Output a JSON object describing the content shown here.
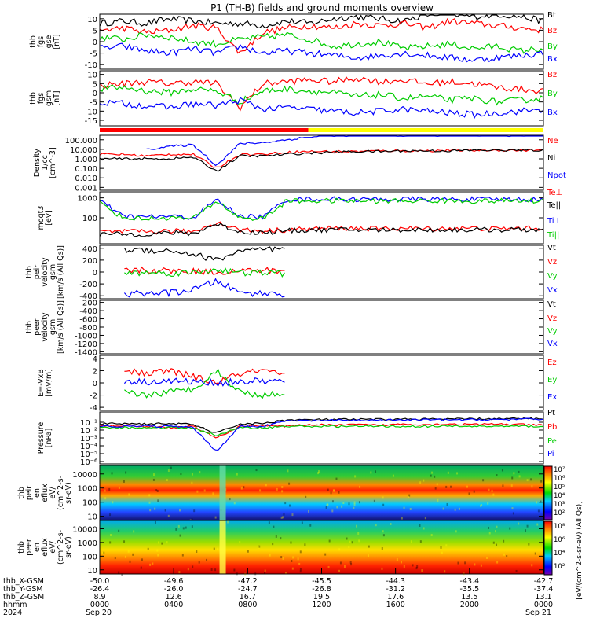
{
  "title": "P1 (TH-B) fields and ground moments overview",
  "colors": {
    "black": "#000000",
    "red": "#ff0000",
    "green": "#00cc00",
    "blue": "#0000ff",
    "yellow": "#ffff00"
  },
  "chart_data": [
    {
      "type": "line",
      "id": "fgs_gse",
      "ylabel": [
        "thb",
        "fgs",
        "gse",
        "[nT]"
      ],
      "ylim": [
        -12,
        12
      ],
      "ticks": [
        -10,
        -5,
        0,
        5,
        10
      ],
      "series": [
        {
          "name": "Bt",
          "color": "black",
          "values": [
            8,
            9,
            8,
            10,
            9,
            8,
            8,
            7,
            9,
            8,
            10,
            11,
            10,
            9,
            12,
            12,
            11,
            12,
            11,
            9
          ]
        },
        {
          "name": "Bz",
          "color": "red",
          "values": [
            5,
            6,
            4,
            5,
            7,
            6,
            -5,
            4,
            6,
            7,
            6,
            8,
            7,
            8,
            6,
            9,
            8,
            7,
            6,
            5
          ]
        },
        {
          "name": "By",
          "color": "green",
          "values": [
            2,
            1,
            3,
            2,
            0,
            -1,
            1,
            2,
            3,
            1,
            -2,
            -1,
            0,
            -3,
            -2,
            -1,
            -3,
            -2,
            -4,
            -3
          ]
        },
        {
          "name": "Bx",
          "color": "blue",
          "values": [
            -3,
            -2,
            -4,
            -5,
            -3,
            -5,
            -2,
            -5,
            -4,
            -5,
            -6,
            -7,
            -6,
            -5,
            -6,
            -7,
            -8,
            -7,
            -6,
            -5
          ]
        }
      ]
    },
    {
      "type": "line",
      "id": "fgs_gsm",
      "ylabel": [
        "thb",
        "fgs",
        "gsm",
        "[nT]"
      ],
      "ylim": [
        -18,
        12
      ],
      "ticks": [
        -15,
        -10,
        -5,
        0,
        5,
        10
      ],
      "series": [
        {
          "name": "Bz",
          "color": "red",
          "values": [
            4,
            5,
            6,
            5,
            6,
            5,
            -8,
            5,
            6,
            7,
            6,
            8,
            6,
            7,
            5,
            6,
            5,
            3,
            2,
            1
          ]
        },
        {
          "name": "By",
          "color": "green",
          "values": [
            2,
            3,
            1,
            0,
            2,
            1,
            -5,
            1,
            2,
            1,
            0,
            -2,
            -1,
            -3,
            -2,
            -4,
            -3,
            -5,
            -4,
            -3
          ]
        },
        {
          "name": "Bx",
          "color": "blue",
          "values": [
            -5,
            -6,
            -7,
            -8,
            -6,
            -7,
            -4,
            -9,
            -8,
            -9,
            -10,
            -11,
            -10,
            -9,
            -10,
            -11,
            -12,
            -11,
            -10,
            -9
          ]
        }
      ]
    },
    {
      "type": "line",
      "id": "density",
      "ylabel": [
        "Density",
        "1/cc",
        "[cm^-3]"
      ],
      "log": true,
      "ylim": [
        0.0005,
        300
      ],
      "ticks": [
        0.001,
        0.01,
        0.1,
        1,
        10,
        100
      ],
      "ticklabels": [
        "0.001",
        "0.010",
        "0.100",
        "1.000",
        "10.000",
        "100.000"
      ],
      "series": [
        {
          "name": "Ne",
          "color": "red",
          "values": [
            3,
            3,
            2,
            3,
            3,
            0.1,
            3,
            3,
            5,
            6,
            6,
            6,
            7,
            7,
            7,
            8,
            8,
            8,
            8,
            8
          ]
        },
        {
          "name": "Ni",
          "color": "black",
          "values": [
            1,
            1,
            1,
            1,
            1.5,
            0.05,
            2,
            2,
            3,
            4,
            5,
            6,
            6,
            7,
            7,
            7,
            8,
            8,
            8,
            8
          ]
        },
        {
          "name": "Npot",
          "color": "blue",
          "values": [
            null,
            null,
            10,
            20,
            30,
            0.2,
            40,
            50,
            100,
            200,
            300,
            300,
            300,
            300,
            300,
            300,
            300,
            300,
            300,
            300
          ]
        }
      ]
    },
    {
      "type": "line",
      "id": "temp",
      "ylabel": [
        "moqt3",
        "[eV]"
      ],
      "log": true,
      "ylim": [
        5,
        2000
      ],
      "ticks": [
        100,
        1000
      ],
      "ticklabels": [
        "100",
        "1000"
      ],
      "series": [
        {
          "name": "Te⊥",
          "color": "red",
          "values": [
            20,
            20,
            20,
            22,
            20,
            60,
            25,
            22,
            25,
            28,
            30,
            30,
            28,
            30,
            28,
            30,
            30,
            28,
            30,
            30
          ]
        },
        {
          "name": "Te||",
          "color": "black",
          "values": [
            15,
            15,
            15,
            18,
            16,
            50,
            20,
            18,
            22,
            25,
            25,
            25,
            25,
            25,
            25,
            25,
            25,
            25,
            25,
            25
          ]
        },
        {
          "name": "Ti⊥",
          "color": "blue",
          "values": [
            700,
            120,
            110,
            120,
            100,
            800,
            120,
            110,
            850,
            850,
            860,
            850,
            840,
            850,
            860,
            850,
            840,
            850,
            850,
            850
          ]
        },
        {
          "name": "Ti||",
          "color": "green",
          "values": [
            600,
            100,
            90,
            100,
            90,
            700,
            100,
            90,
            700,
            700,
            710,
            700,
            690,
            700,
            710,
            700,
            690,
            700,
            700,
            700
          ]
        }
      ]
    },
    {
      "type": "line",
      "id": "peir_vel",
      "ylabel": [
        "thb",
        "peir",
        "velocity",
        "gsm",
        "[km/s (All Qs)]"
      ],
      "ylim": [
        -450,
        450
      ],
      "ticks": [
        -400,
        -200,
        0,
        200,
        400
      ],
      "series": [
        {
          "name": "Vt",
          "color": "black",
          "values": [
            null,
            380,
            370,
            360,
            300,
            200,
            360,
            370,
            380,
            null,
            null,
            null,
            null,
            null,
            null,
            null,
            null,
            null,
            null,
            null
          ]
        },
        {
          "name": "Vz",
          "color": "red",
          "values": [
            null,
            20,
            30,
            20,
            10,
            0,
            20,
            30,
            10,
            null,
            null,
            null,
            null,
            null,
            null,
            null,
            null,
            null,
            null,
            null
          ]
        },
        {
          "name": "Vy",
          "color": "green",
          "values": [
            null,
            -20,
            -10,
            -20,
            -10,
            50,
            -20,
            -10,
            -30,
            null,
            null,
            null,
            null,
            null,
            null,
            null,
            null,
            null,
            null,
            null
          ]
        },
        {
          "name": "Vx",
          "color": "blue",
          "values": [
            null,
            -370,
            -360,
            -350,
            -300,
            -150,
            -350,
            -360,
            -370,
            null,
            null,
            null,
            null,
            null,
            null,
            null,
            null,
            null,
            null,
            null
          ]
        }
      ]
    },
    {
      "type": "line",
      "id": "peer_vel",
      "ylabel": [
        "thb",
        "peer",
        "velocity",
        "gsm",
        "[km/s (All Qs)]"
      ],
      "ylim": [
        -1450,
        -150
      ],
      "ticks": [
        -200,
        -400,
        -600,
        -800,
        -1000,
        -1200,
        -1400
      ],
      "series": [
        {
          "name": "Vt",
          "color": "black",
          "values": []
        },
        {
          "name": "Vz",
          "color": "red",
          "values": []
        },
        {
          "name": "Vy",
          "color": "green",
          "values": []
        },
        {
          "name": "Vx",
          "color": "blue",
          "values": []
        }
      ]
    },
    {
      "type": "line",
      "id": "efield",
      "ylabel": [
        "E=-VxB",
        "[mV/m]"
      ],
      "ylim": [
        -4.5,
        4.5
      ],
      "ticks": [
        -4,
        -2,
        0,
        2,
        4
      ],
      "series": [
        {
          "name": "Ez",
          "color": "red",
          "values": [
            null,
            2,
            1.5,
            2,
            1,
            0,
            1.5,
            2,
            1,
            null,
            null,
            null,
            null,
            null,
            null,
            null,
            null,
            null,
            null,
            null
          ]
        },
        {
          "name": "Ey",
          "color": "green",
          "values": [
            null,
            -1.5,
            -2,
            -1.5,
            -1,
            2,
            -1.5,
            -2,
            -1.8,
            null,
            null,
            null,
            null,
            null,
            null,
            null,
            null,
            null,
            null,
            null
          ]
        },
        {
          "name": "Ex",
          "color": "blue",
          "values": [
            null,
            0.3,
            0.2,
            0.3,
            0.2,
            0,
            0.2,
            0.3,
            0.2,
            null,
            null,
            null,
            null,
            null,
            null,
            null,
            null,
            null,
            null,
            null
          ]
        }
      ]
    },
    {
      "type": "line",
      "id": "pressure",
      "ylabel": [
        "Pressure",
        "[nPa]"
      ],
      "log": true,
      "ylim": [
        5e-07,
        2
      ],
      "ticks": [
        1e-06,
        1e-05,
        0.0001,
        0.001,
        0.01,
        0.1
      ],
      "ticklabels": [
        "10⁻⁶",
        "10⁻⁵",
        "10⁻⁴",
        "10⁻³",
        "10⁻²",
        "10⁻¹"
      ],
      "series": [
        {
          "name": "Pt",
          "color": "black",
          "values": [
            0.06,
            0.07,
            0.06,
            0.07,
            0.05,
            0.004,
            0.06,
            0.07,
            0.2,
            0.2,
            0.22,
            0.22,
            0.23,
            0.24,
            0.25,
            0.25,
            0.26,
            0.27,
            0.28,
            0.3
          ]
        },
        {
          "name": "Pb",
          "color": "red",
          "values": [
            0.03,
            0.04,
            0.03,
            0.02,
            0.03,
            0.001,
            0.03,
            0.04,
            0.03,
            0.05,
            0.04,
            0.05,
            0.04,
            0.06,
            0.05,
            0.06,
            0.05,
            0.06,
            0.05,
            0.04
          ]
        },
        {
          "name": "Pe",
          "color": "green",
          "values": [
            0.02,
            0.02,
            0.02,
            0.02,
            0.02,
            0.002,
            0.02,
            0.02,
            0.03,
            0.03,
            0.03,
            0.03,
            0.03,
            0.03,
            0.03,
            0.03,
            0.03,
            0.03,
            0.03,
            0.03
          ]
        },
        {
          "name": "Pi",
          "color": "blue",
          "values": [
            0.03,
            0.03,
            0.03,
            0.03,
            0.02,
            2e-05,
            0.03,
            0.03,
            0.15,
            0.16,
            0.17,
            0.18,
            0.18,
            0.19,
            0.2,
            0.2,
            0.21,
            0.22,
            0.23,
            0.24
          ]
        }
      ]
    },
    {
      "type": "heatmap",
      "id": "peir_spec",
      "ylabel": [
        "thb",
        "peir",
        "en",
        "eflux",
        "eV/",
        "(cm^2-s-",
        "sr-eV)"
      ],
      "ylim": [
        5,
        40000
      ],
      "log": true,
      "ticks": [
        10,
        100,
        1000,
        10000
      ],
      "ticklabels": [
        "10",
        "100",
        "1000",
        "10000"
      ]
    },
    {
      "type": "heatmap",
      "id": "peer_spec",
      "ylabel": [
        "thb",
        "peer",
        "en",
        "eflux",
        "eV/",
        "(cm^2-s-",
        "sr-eV)"
      ],
      "ylim": [
        5,
        40000
      ],
      "log": true,
      "ticks": [
        10,
        100,
        1000,
        10000
      ],
      "ticklabels": [
        "10",
        "100",
        "1000",
        "10000"
      ]
    }
  ],
  "colorbar": {
    "label": "[eV/(cm^2-s-sr-eV) (All Qs)]",
    "ticks": [
      "10⁷",
      "10⁶",
      "10⁵",
      "10⁴",
      "10³",
      "10²"
    ],
    "ticks2": [
      "10⁸",
      "10⁶",
      "10⁴",
      "10²"
    ]
  },
  "mode_bar": {
    "segments": [
      {
        "from": 0,
        "to": 0.47,
        "color": "red"
      },
      {
        "from": 0.47,
        "to": 1,
        "color": "yellow"
      }
    ]
  },
  "xaxis": {
    "rows": [
      {
        "label": "thb_X-GSM",
        "values": [
          "-50.0",
          "-49.6",
          "-47.2",
          "-45.5",
          "-44.3",
          "-43.4",
          "-42.7"
        ]
      },
      {
        "label": "thb_Y-GSM",
        "values": [
          "-26.4",
          "-26.0",
          "-24.7",
          "-26.8",
          "-31.2",
          "-35.5",
          "-37.4"
        ]
      },
      {
        "label": "thb_Z-GSM",
        "values": [
          "8.9",
          "12.6",
          "16.7",
          "19.5",
          "17.6",
          "13.5",
          "13.1"
        ]
      },
      {
        "label": "hhmm",
        "values": [
          "0000",
          "0400",
          "0800",
          "1200",
          "1600",
          "2000",
          "0000"
        ]
      },
      {
        "label": "2024",
        "values": [
          "Sep 20",
          "",
          "",
          "",
          "",
          "",
          "Sep 21"
        ]
      }
    ]
  }
}
